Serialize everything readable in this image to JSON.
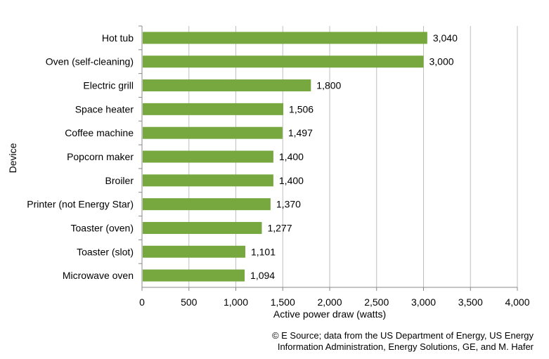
{
  "chart_data": {
    "type": "bar",
    "orientation": "horizontal",
    "categories": [
      "Hot tub",
      "Oven (self-cleaning)",
      "Electric grill",
      "Space heater",
      "Coffee machine",
      "Popcorn maker",
      "Broiler",
      "Printer (not Energy Star)",
      "Toaster (oven)",
      "Toaster (slot)",
      "Microwave oven"
    ],
    "values": [
      3040,
      3000,
      1800,
      1506,
      1497,
      1400,
      1400,
      1370,
      1277,
      1101,
      1094
    ],
    "data_labels": [
      "3,040",
      "3,000",
      "1,800",
      "1,506",
      "1,497",
      "1,400",
      "1,400",
      "1,370",
      "1,277",
      "1,101",
      "1,094"
    ],
    "xlabel": "Active power draw (watts)",
    "ylabel": "Device",
    "xlim": [
      0,
      4000
    ],
    "x_ticks": [
      0,
      500,
      1000,
      1500,
      2000,
      2500,
      3000,
      3500,
      4000
    ],
    "x_tick_labels": [
      "0",
      "500",
      "1,000",
      "1,500",
      "2,000",
      "2,500",
      "3,000",
      "3,500",
      "4,000"
    ],
    "grid": "vertical",
    "legend": "none",
    "bar_color": "#77a83f",
    "gridline_color": "#bfbfbf"
  },
  "source": {
    "line1": "© E Source; data from the US Department  of Energy, US Energy",
    "line2": "Information Administration, Energy Solutions, GE, and M. Hafer"
  }
}
